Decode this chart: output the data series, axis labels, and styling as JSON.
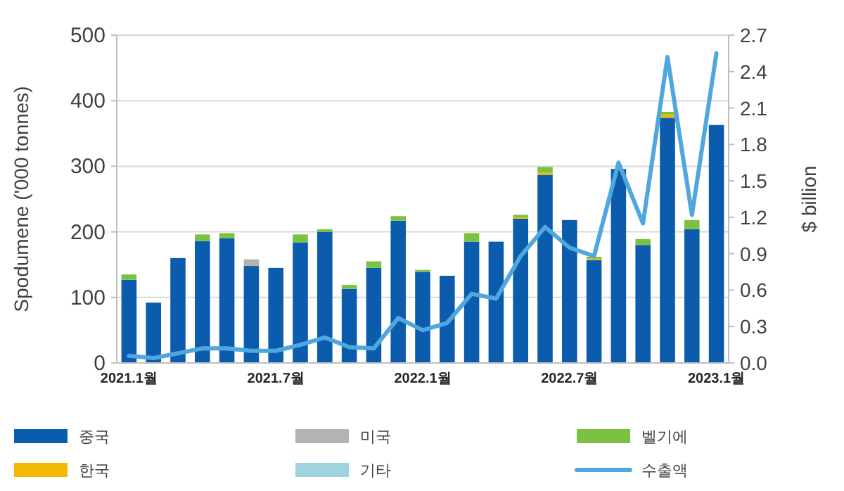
{
  "chart_data": {
    "type": "bar",
    "stacked": true,
    "categories": [
      "2021.1월",
      null,
      null,
      null,
      null,
      null,
      "2021.7월",
      null,
      null,
      null,
      null,
      null,
      "2022.1월",
      null,
      null,
      null,
      null,
      null,
      "2022.7월",
      null,
      null,
      null,
      null,
      null,
      "2023.1월"
    ],
    "series": [
      {
        "name": "중국",
        "color": "#0b5cad",
        "values": [
          127,
          92,
          160,
          186,
          190,
          148,
          145,
          184,
          200,
          113,
          145,
          217,
          139,
          133,
          185,
          185,
          220,
          287,
          218,
          157,
          296,
          180,
          374,
          204,
          363
        ]
      },
      {
        "name": "한국",
        "color": "#f5b800",
        "values": [
          null,
          null,
          null,
          null,
          null,
          null,
          null,
          null,
          null,
          null,
          null,
          null,
          null,
          null,
          null,
          null,
          2,
          3,
          null,
          2,
          null,
          null,
          5,
          null,
          null
        ]
      },
      {
        "name": "미국",
        "color": "#b3b3b3",
        "values": [
          null,
          null,
          null,
          null,
          null,
          10,
          null,
          null,
          null,
          null,
          null,
          null,
          null,
          null,
          null,
          null,
          null,
          null,
          null,
          null,
          null,
          null,
          null,
          null,
          null
        ]
      },
      {
        "name": "기타",
        "color": "#9fd3e0",
        "values": [
          null,
          null,
          null,
          null,
          null,
          null,
          null,
          null,
          null,
          null,
          null,
          null,
          null,
          null,
          null,
          null,
          null,
          null,
          null,
          null,
          null,
          null,
          null,
          null,
          null
        ]
      },
      {
        "name": "벨기에",
        "color": "#7cc242",
        "values": [
          8,
          null,
          null,
          10,
          8,
          null,
          null,
          12,
          4,
          6,
          10,
          7,
          3,
          null,
          13,
          null,
          4,
          9,
          null,
          3,
          null,
          9,
          4,
          14,
          null
        ]
      },
      {
        "name": "수출액",
        "type": "line",
        "axis": "y2",
        "color": "#4fa7de",
        "values": [
          0.06,
          0.04,
          0.08,
          0.12,
          0.12,
          0.1,
          0.1,
          0.15,
          0.21,
          0.13,
          0.12,
          0.37,
          0.27,
          0.33,
          0.57,
          0.53,
          0.88,
          1.12,
          0.95,
          0.88,
          1.65,
          1.15,
          2.52,
          1.22,
          2.55
        ]
      }
    ],
    "ylabel": "Spodumene ('000 tonnes)",
    "y2label": "$ billion",
    "ylim": [
      0,
      500
    ],
    "yticks": [
      0,
      100,
      200,
      300,
      400,
      500
    ],
    "y2lim": [
      0,
      2.7
    ],
    "y2ticks": [
      {
        "value": 0,
        "label": "0.0"
      },
      0.3,
      0.6,
      0.9,
      1.2,
      1.5,
      1.8,
      2.1,
      2.4,
      2.7
    ],
    "grid": "y",
    "legend": "bottom"
  }
}
